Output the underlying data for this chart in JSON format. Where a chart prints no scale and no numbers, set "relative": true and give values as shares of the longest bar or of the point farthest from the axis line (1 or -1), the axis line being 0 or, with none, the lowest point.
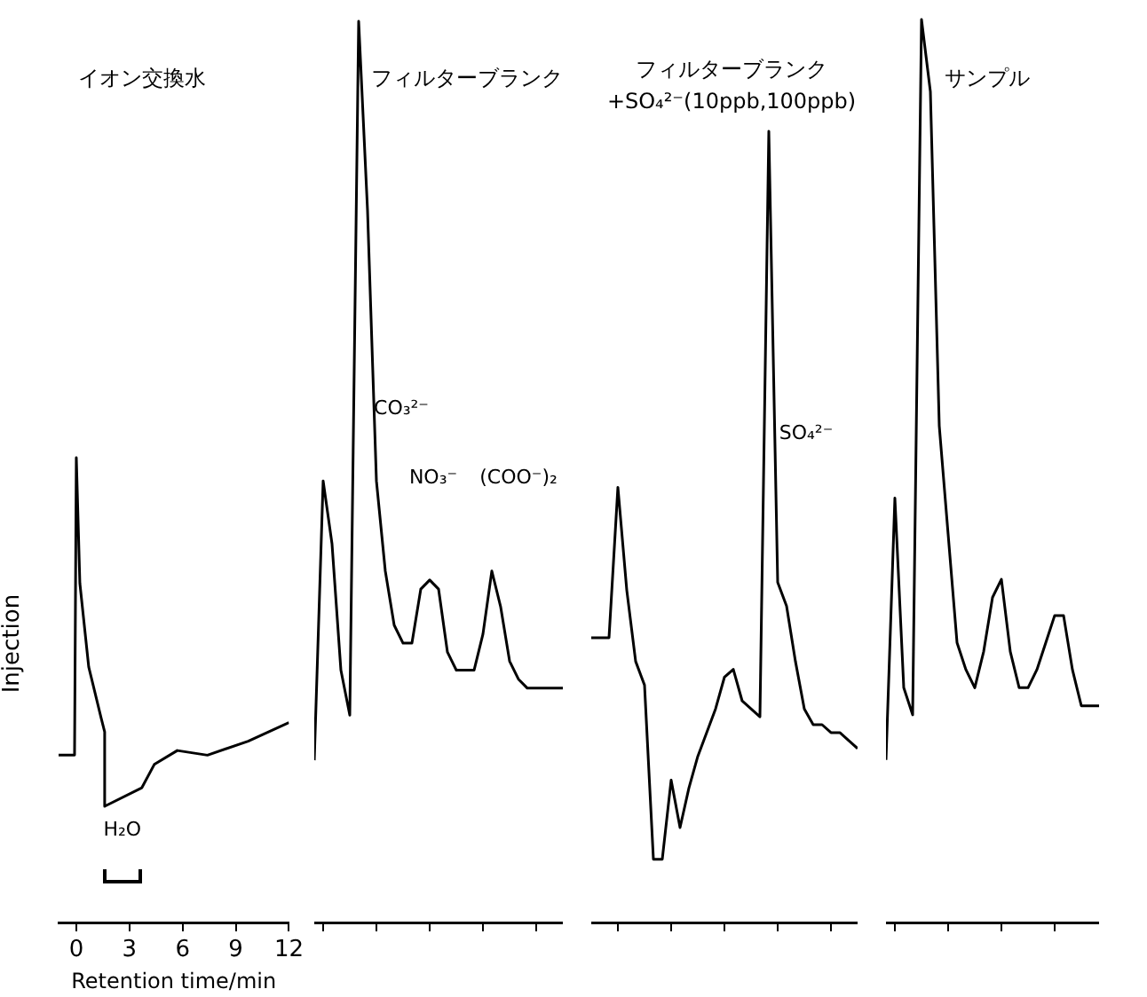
{
  "chart_data": [
    {
      "type": "line",
      "title": "イオン交換水",
      "xlabel": "Retention time/min",
      "ylabel": "Injection",
      "relative": true,
      "marker": "none",
      "color": "#000000",
      "xlim": [
        -1,
        12
      ],
      "xticks": [
        0,
        3,
        6,
        9,
        12
      ],
      "x": [
        -1.0,
        -0.1,
        0,
        0.2,
        0.7,
        1.4,
        1.6,
        1.6,
        3.7,
        4.4,
        5.7,
        7.4,
        9.7,
        12
      ],
      "values": [
        0.36,
        0.36,
        1,
        0.73,
        0.55,
        0.44,
        0.41,
        0.25,
        0.29,
        0.34,
        0.37,
        0.36,
        0.39,
        0.43
      ],
      "annotations": [
        {
          "text": "H₂O",
          "x": 2.6,
          "y": 0.25
        }
      ]
    },
    {
      "type": "line",
      "title": "フィルターブランク",
      "relative": true,
      "marker": "none",
      "color": "#000000",
      "tick_labels": false,
      "categories": [
        null,
        null,
        null,
        null,
        null,
        null,
        null,
        null,
        null,
        null,
        null,
        null,
        null,
        null,
        null,
        null,
        null,
        null,
        null,
        null,
        null,
        null,
        null,
        null,
        null,
        null,
        null,
        null,
        null
      ],
      "values": [
        0.18,
        0.49,
        0.42,
        0.28,
        0.23,
        1,
        0.79,
        0.49,
        0.39,
        0.33,
        0.31,
        0.31,
        0.37,
        0.38,
        0.37,
        0.3,
        0.28,
        0.28,
        0.28,
        0.32,
        0.39,
        0.35,
        0.29,
        0.27,
        0.26,
        0.26,
        0.26,
        0.26,
        0.26
      ],
      "annotations": [
        "CO₃²⁻",
        "NO₃⁻",
        "(COO⁻)₂"
      ]
    },
    {
      "type": "line",
      "title": "フィルターブランク\n+SO₄²⁻(10ppb,100ppb)",
      "relative": true,
      "marker": "none",
      "color": "#000000",
      "tick_labels": false,
      "categories": [
        null,
        null,
        null,
        null,
        null,
        null,
        null,
        null,
        null,
        null,
        null,
        null,
        null,
        null,
        null,
        null,
        null,
        null,
        null,
        null,
        null,
        null,
        null,
        null,
        null,
        null,
        null,
        null,
        null,
        null,
        null
      ],
      "values": [
        0.36,
        0.36,
        0.36,
        0.55,
        0.42,
        0.33,
        0.3,
        0.08,
        0.08,
        0.18,
        0.12,
        0.17,
        0.21,
        0.24,
        0.27,
        0.31,
        0.32,
        0.28,
        0.27,
        0.26,
        1,
        0.43,
        0.4,
        0.33,
        0.27,
        0.25,
        0.25,
        0.24,
        0.24,
        0.23,
        0.22
      ],
      "annotations": [
        "SO₄²⁻"
      ]
    },
    {
      "type": "line",
      "title": "サンプル",
      "relative": true,
      "marker": "none",
      "color": "#000000",
      "tick_labels": false,
      "categories": [
        null,
        null,
        null,
        null,
        null,
        null,
        null,
        null,
        null,
        null,
        null,
        null,
        null,
        null,
        null,
        null,
        null,
        null,
        null,
        null,
        null,
        null,
        null,
        null,
        null
      ],
      "values": [
        0.18,
        0.47,
        0.26,
        0.23,
        1,
        0.92,
        0.55,
        0.43,
        0.31,
        0.28,
        0.26,
        0.3,
        0.36,
        0.38,
        0.3,
        0.26,
        0.26,
        0.28,
        0.31,
        0.34,
        0.34,
        0.28,
        0.24,
        0.24,
        0.24
      ]
    }
  ]
}
